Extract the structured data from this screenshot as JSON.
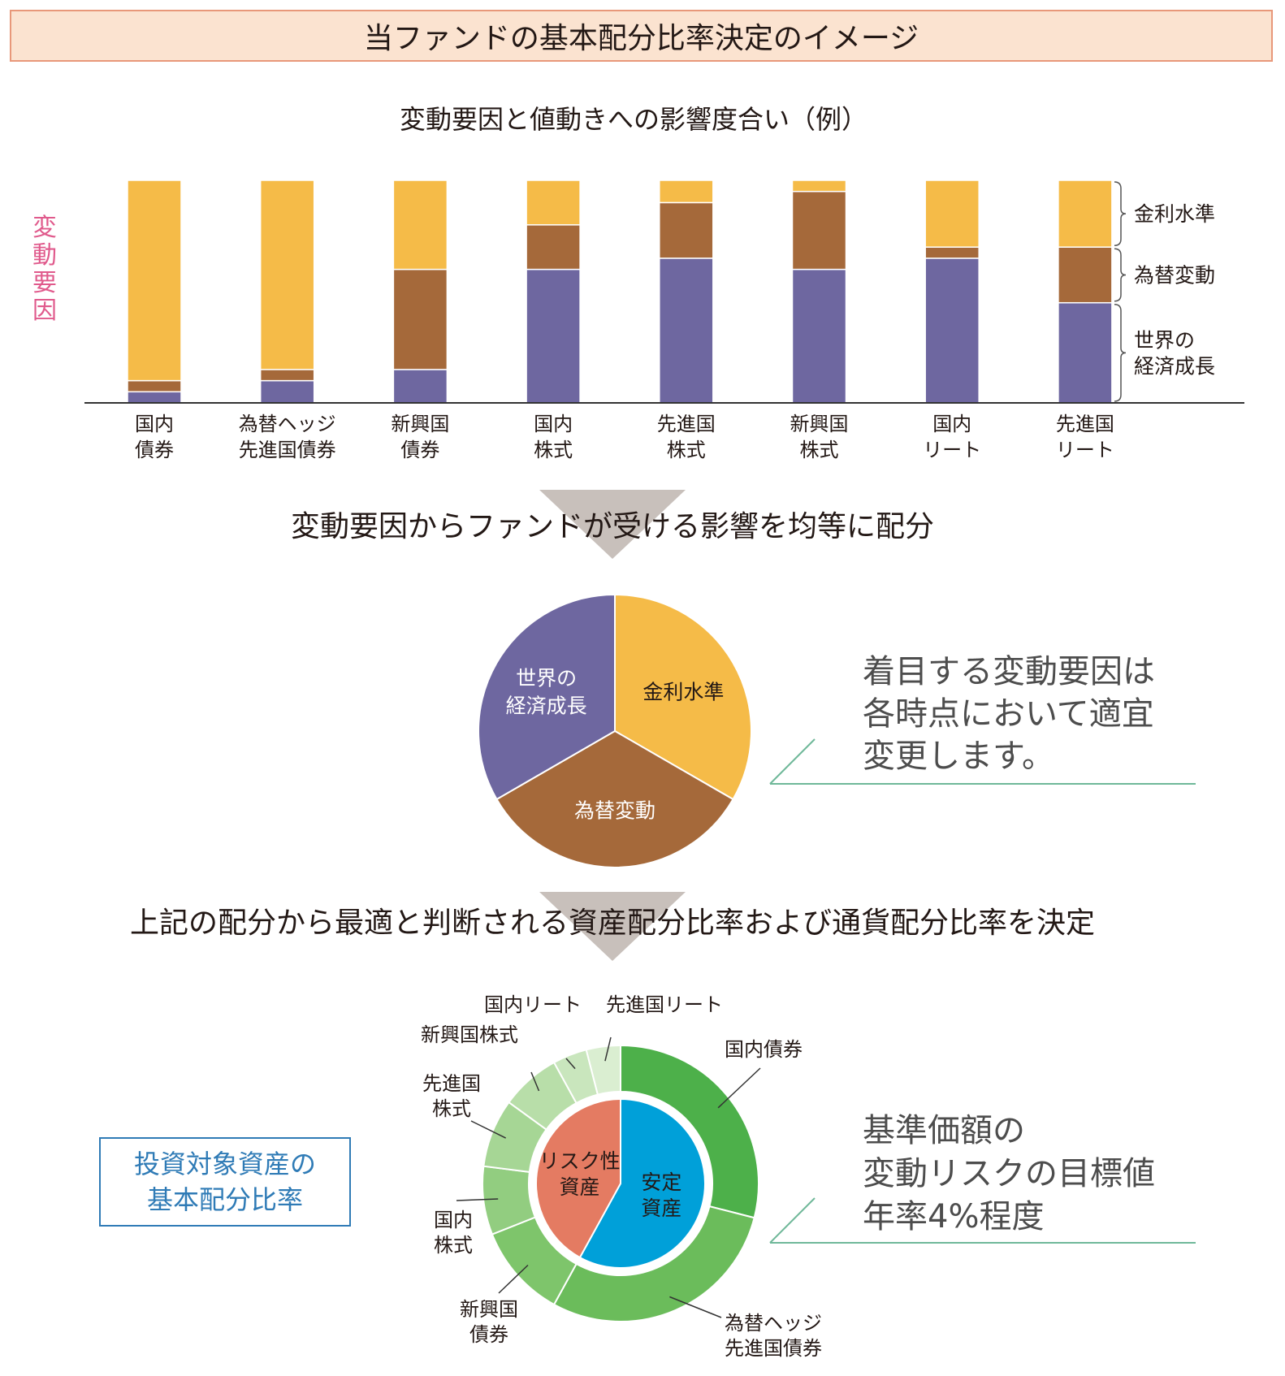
{
  "header": {
    "title": "当ファンドの基本配分比率決定のイメージ"
  },
  "colors": {
    "interest": "#f5bb48",
    "fx": "#a5693a",
    "growth": "#6e67a0",
    "safe": "#00a0d9",
    "risk": "#e47b62",
    "bond_green": "#4db04a",
    "hedged_green": "#6bbc5b",
    "axis_pink": "#e05a8c"
  },
  "sections": {
    "step1_text": "変動要因からファンドが受ける影響を均等に配分",
    "step2_text": "上記の配分から最適と判断される資産配分比率および通貨配分比率を決定"
  },
  "notes": {
    "note1": [
      "着目する変動要因は",
      "各時点において適宜",
      "変更します。"
    ],
    "note2": [
      "基準価額の",
      "変動リスクの目標値",
      "年率4%程度"
    ],
    "box_label": [
      "投資対象資産の",
      "基本配分比率"
    ]
  },
  "chart_data": [
    {
      "type": "bar",
      "stacked": true,
      "title": "変動要因と値動きへの影響度合い（例）",
      "ylabel": "変動要因",
      "xlabel": "",
      "categories": [
        [
          "国内",
          "債券"
        ],
        [
          "為替ヘッジ",
          "先進国債券"
        ],
        [
          "新興国",
          "債券"
        ],
        [
          "国内",
          "株式"
        ],
        [
          "先進国",
          "株式"
        ],
        [
          "新興国",
          "株式"
        ],
        [
          "国内",
          "リート"
        ],
        [
          "先進国",
          "リート"
        ]
      ],
      "series": [
        {
          "name": "世界の経済成長",
          "values": [
            5,
            10,
            15,
            60,
            65,
            60,
            65,
            45
          ],
          "colorKey": "growth"
        },
        {
          "name": "為替変動",
          "values": [
            5,
            5,
            45,
            20,
            25,
            35,
            5,
            25
          ],
          "colorKey": "fx"
        },
        {
          "name": "金利水準",
          "values": [
            90,
            85,
            40,
            20,
            10,
            5,
            30,
            30
          ],
          "colorKey": "interest"
        }
      ],
      "legend_labels": [
        "金利水準",
        "為替変動",
        [
          "世界の",
          "経済成長"
        ]
      ],
      "ylim": [
        0,
        100
      ]
    },
    {
      "type": "pie",
      "labels": [
        [
          "金利水準"
        ],
        [
          "為替変動"
        ],
        [
          "世界の",
          "経済成長"
        ]
      ],
      "values": [
        33.3,
        33.3,
        33.3
      ],
      "colorKeys": [
        "interest",
        "fx",
        "growth"
      ]
    },
    {
      "type": "pie",
      "subtype": "donut",
      "inner": {
        "labels": [
          [
            "安定",
            "資産"
          ],
          [
            "リスク性",
            "資産"
          ]
        ],
        "values": [
          58,
          42
        ],
        "colorKeys": [
          "safe",
          "risk"
        ]
      },
      "outer": {
        "labels": [
          [
            "国内債券"
          ],
          [
            "為替ヘッジ",
            "先進国債券"
          ],
          [
            "新興国",
            "債券"
          ],
          [
            "国内",
            "株式"
          ],
          [
            "先進国",
            "株式"
          ],
          [
            "新興国株式"
          ],
          [
            "国内リート"
          ],
          [
            "先進国リート"
          ]
        ],
        "values": [
          29,
          29,
          11,
          8,
          8,
          7,
          4,
          4
        ],
        "colors": [
          "#4db04a",
          "#6bbc5b",
          "#7ec56b",
          "#92cd80",
          "#a6d695",
          "#b8dea9",
          "#c9e6bd",
          "#daeed1"
        ]
      }
    }
  ]
}
